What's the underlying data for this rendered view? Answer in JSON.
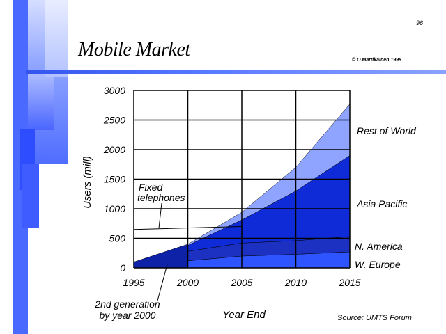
{
  "slide": {
    "page_number": "96",
    "title": "Mobile Market",
    "copyright": "© O.Martikainen  1998",
    "source": "Source: UMTS Forum"
  },
  "chart_data": {
    "type": "area",
    "xlabel": "Year End",
    "ylabel": "Users (mill)",
    "xlim": [
      1995,
      2015
    ],
    "ylim": [
      0,
      3000
    ],
    "x_ticks": [
      "1995",
      "2000",
      "2005",
      "2010",
      "2015"
    ],
    "y_ticks": [
      "0",
      "500",
      "1000",
      "1500",
      "2000",
      "2500",
      "3000"
    ],
    "grid": true,
    "stacked": true,
    "x": [
      2000,
      2005,
      2010,
      2015
    ],
    "series": [
      {
        "name": "W. Europe",
        "color": "#2e54ff",
        "values": [
          120,
          200,
          230,
          270
        ]
      },
      {
        "name": "N. America",
        "color": "#1c31c2",
        "values": [
          160,
          220,
          230,
          260
        ]
      },
      {
        "name": "Asia Pacific",
        "color": "#0f2bd8",
        "values": [
          100,
          390,
          840,
          1370
        ]
      },
      {
        "name": "Rest of World",
        "color": "#8ea4ff",
        "values": [
          20,
          130,
          400,
          870
        ]
      }
    ],
    "second_generation": {
      "label": "2nd generation by year 2000",
      "color": "#0e22a8",
      "x": [
        1995,
        2000
      ],
      "values": [
        100,
        400
      ]
    },
    "fixed_telephones": {
      "label": "Fixed telephones",
      "x": [
        1995,
        2005
      ],
      "values": [
        650,
        700
      ]
    }
  }
}
